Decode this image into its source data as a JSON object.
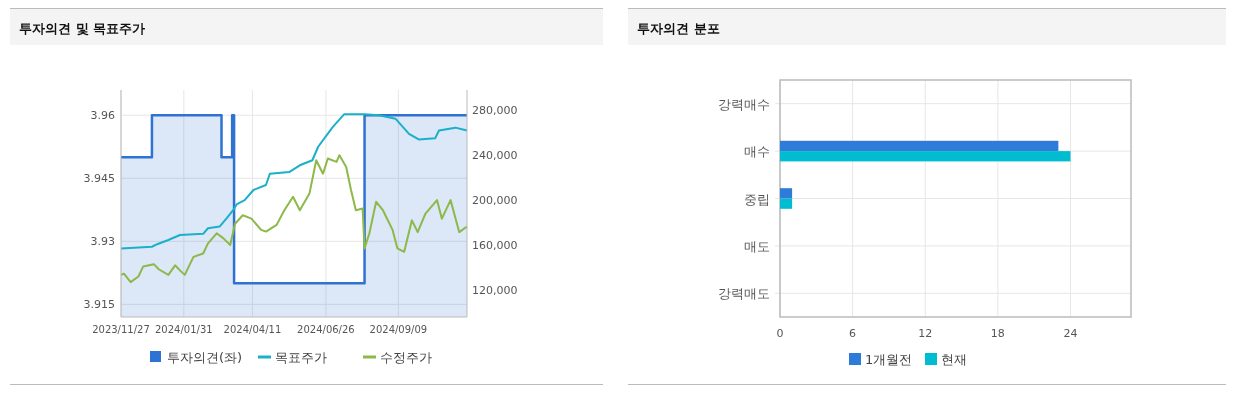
{
  "chart_data": [
    {
      "type": "line",
      "title": "투자의견 및 목표주가",
      "xlim": [
        "2023-11-27",
        "2024-11-19"
      ],
      "xticks": [
        {
          "value": "2023-11-27",
          "label": "2023/11/27"
        },
        {
          "value": "2024-01-31",
          "label": "2024/01/31"
        },
        {
          "value": "2024-04-11",
          "label": "2024/04/11"
        },
        {
          "value": "2024-06-26",
          "label": "2024/06/26"
        },
        {
          "value": "2024-09-09",
          "label": "2024/09/09"
        }
      ],
      "ylim": [
        3.912,
        3.966
      ],
      "yticks": [
        3.915,
        3.93,
        3.945,
        3.96
      ],
      "y2lim": [
        96000,
        298000
      ],
      "y2ticks": [
        {
          "value": 120000,
          "label": "120,000"
        },
        {
          "value": 160000,
          "label": "160,000"
        },
        {
          "value": 200000,
          "label": "200,000"
        },
        {
          "value": 240000,
          "label": "240,000"
        },
        {
          "value": 280000,
          "label": "280,000"
        }
      ],
      "grid": true,
      "legend": "bottom",
      "series": [
        {
          "name": "투자의견(좌)",
          "type": "area",
          "axis": "y",
          "color": "#2e72d2",
          "x": [
            "2023-11-27",
            "2023-12-29",
            "2023-12-29",
            "2024-03-10",
            "2024-03-10",
            "2024-03-21",
            "2024-03-21",
            "2024-03-23",
            "2024-03-23",
            "2024-08-05",
            "2024-08-05",
            "2024-11-19"
          ],
          "values": [
            3.95,
            3.95,
            3.96,
            3.96,
            3.95,
            3.95,
            3.96,
            3.96,
            3.92,
            3.92,
            3.96,
            3.96
          ]
        },
        {
          "name": "목표주가",
          "type": "line",
          "axis": "y2",
          "color": "#1ab0c8",
          "x": [
            "2023-11-27",
            "2023-12-29",
            "2024-01-04",
            "2024-01-15",
            "2024-01-27",
            "2024-02-20",
            "2024-02-25",
            "2024-03-08",
            "2024-03-15",
            "2024-03-22",
            "2024-03-26",
            "2024-04-03",
            "2024-04-12",
            "2024-04-25",
            "2024-04-29",
            "2024-05-19",
            "2024-05-30",
            "2024-06-12",
            "2024-06-18",
            "2024-07-03",
            "2024-07-15",
            "2024-08-05",
            "2024-08-20",
            "2024-09-06",
            "2024-09-20",
            "2024-09-30",
            "2024-10-17",
            "2024-10-21",
            "2024-11-07",
            "2024-11-19"
          ],
          "values": [
            157000,
            158500,
            161000,
            164500,
            169000,
            170000,
            175000,
            176500,
            183500,
            191000,
            196500,
            200000,
            209000,
            213500,
            223500,
            225000,
            231000,
            235500,
            247500,
            265000,
            276500,
            276500,
            275500,
            272500,
            259000,
            254000,
            255000,
            262000,
            264500,
            262000
          ]
        },
        {
          "name": "수정주가",
          "type": "line",
          "axis": "y2",
          "color": "#8db84a",
          "x": [
            "2023-11-27",
            "2023-11-30",
            "2023-12-07",
            "2023-12-15",
            "2023-12-20",
            "2023-12-31",
            "2024-01-05",
            "2024-01-15",
            "2024-01-22",
            "2024-01-27",
            "2024-02-01",
            "2024-02-10",
            "2024-02-20",
            "2024-02-25",
            "2024-03-05",
            "2024-03-12",
            "2024-03-19",
            "2024-03-24",
            "2024-04-01",
            "2024-04-10",
            "2024-04-20",
            "2024-04-25",
            "2024-05-06",
            "2024-05-14",
            "2024-05-23",
            "2024-05-30",
            "2024-06-09",
            "2024-06-16",
            "2024-06-23",
            "2024-06-28",
            "2024-07-07",
            "2024-07-10",
            "2024-07-17",
            "2024-07-22",
            "2024-07-27",
            "2024-08-03",
            "2024-08-05",
            "2024-08-10",
            "2024-08-17",
            "2024-08-24",
            "2024-09-03",
            "2024-09-08",
            "2024-09-15",
            "2024-09-23",
            "2024-09-29",
            "2024-10-07",
            "2024-10-19",
            "2024-10-24",
            "2024-11-02",
            "2024-11-11",
            "2024-11-19"
          ],
          "values": [
            133500,
            134500,
            127000,
            132000,
            141000,
            143000,
            138500,
            133500,
            142000,
            137500,
            133500,
            149500,
            152500,
            161500,
            170500,
            166000,
            160000,
            179000,
            186500,
            183500,
            173500,
            172000,
            178000,
            191000,
            203000,
            191000,
            206000,
            235500,
            223500,
            237000,
            234000,
            240000,
            229500,
            209000,
            191000,
            192500,
            157000,
            170500,
            198500,
            191000,
            173500,
            157000,
            154000,
            182000,
            171500,
            188000,
            200000,
            183500,
            200000,
            171500,
            176500
          ]
        }
      ]
    },
    {
      "type": "bar",
      "title": "투자의견 분포",
      "orientation": "horizontal",
      "categories": [
        "강력매수",
        "매수",
        "중립",
        "매도",
        "강력매도"
      ],
      "xlim": [
        0,
        29
      ],
      "xticks": [
        0,
        6,
        12,
        18,
        24
      ],
      "grid": true,
      "legend": "bottom",
      "series": [
        {
          "name": "1개월전",
          "color": "#2e7bd9",
          "values": [
            0,
            23,
            1,
            0,
            0
          ]
        },
        {
          "name": "현재",
          "color": "#00bcd0",
          "values": [
            0,
            24,
            1,
            0,
            0
          ]
        }
      ]
    }
  ]
}
